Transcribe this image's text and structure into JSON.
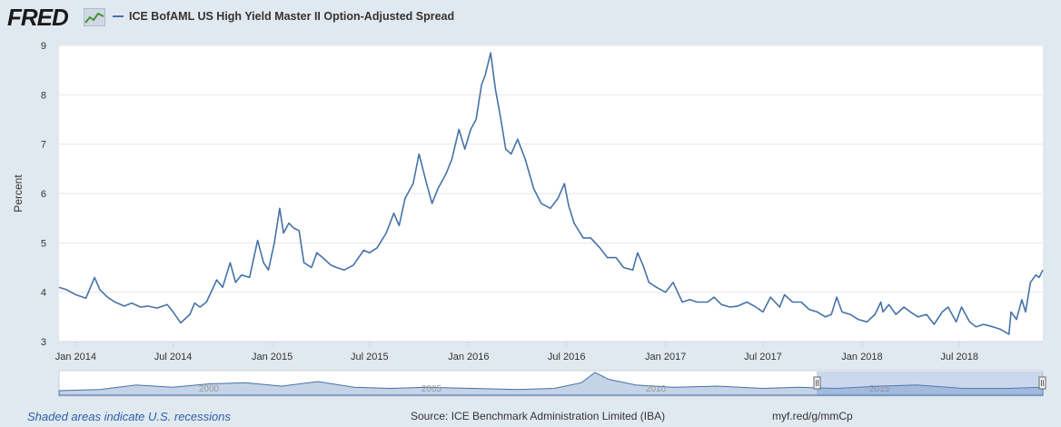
{
  "header": {
    "logo": "FRED",
    "series_name": "ICE BofAML US High Yield Master II Option-Adjusted Spread",
    "series_color": "#4572a7"
  },
  "footer": {
    "recession_note": "Shaded areas indicate U.S. recessions",
    "source": "Source: ICE Benchmark Administration Limited (IBA)",
    "short_url": "myf.red/g/mmCp"
  },
  "navigator": {
    "year_labels": [
      "2000",
      "2005",
      "2010",
      "2015"
    ]
  },
  "chart_data": {
    "type": "line",
    "title": "",
    "xlabel": "",
    "ylabel": "Percent",
    "xlim": [
      "2013-12-01",
      "2018-12-03"
    ],
    "ylim": [
      3,
      9
    ],
    "yticks": [
      3,
      4,
      5,
      6,
      7,
      8,
      9
    ],
    "xticks": [
      "Jan 2014",
      "Jul 2014",
      "Jan 2015",
      "Jul 2015",
      "Jan 2016",
      "Jul 2016",
      "Jan 2017",
      "Jul 2017",
      "Jan 2018",
      "Jul 2018"
    ],
    "grid": "horizontal",
    "legend": "top-left",
    "series": [
      {
        "name": "ICE BofAML US High Yield Master II Option-Adjusted Spread",
        "color": "#4572a7",
        "x": [
          "2013-12-01",
          "2013-12-15",
          "2014-01-01",
          "2014-01-20",
          "2014-02-05",
          "2014-02-15",
          "2014-03-01",
          "2014-03-15",
          "2014-04-01",
          "2014-04-15",
          "2014-05-01",
          "2014-05-15",
          "2014-06-01",
          "2014-06-20",
          "2014-07-01",
          "2014-07-15",
          "2014-08-01",
          "2014-08-10",
          "2014-08-20",
          "2014-09-01",
          "2014-09-20",
          "2014-10-01",
          "2014-10-15",
          "2014-10-25",
          "2014-11-05",
          "2014-11-20",
          "2014-12-05",
          "2014-12-16",
          "2014-12-25",
          "2015-01-05",
          "2015-01-15",
          "2015-01-22",
          "2015-02-01",
          "2015-02-10",
          "2015-02-20",
          "2015-03-01",
          "2015-03-15",
          "2015-03-25",
          "2015-04-05",
          "2015-04-20",
          "2015-05-01",
          "2015-05-15",
          "2015-06-01",
          "2015-06-20",
          "2015-07-01",
          "2015-07-15",
          "2015-08-01",
          "2015-08-15",
          "2015-08-25",
          "2015-09-05",
          "2015-09-20",
          "2015-10-01",
          "2015-10-15",
          "2015-10-25",
          "2015-11-05",
          "2015-11-20",
          "2015-12-01",
          "2015-12-14",
          "2015-12-25",
          "2016-01-05",
          "2016-01-15",
          "2016-01-25",
          "2016-02-01",
          "2016-02-11",
          "2016-02-20",
          "2016-03-01",
          "2016-03-10",
          "2016-03-20",
          "2016-04-01",
          "2016-04-15",
          "2016-05-01",
          "2016-05-15",
          "2016-06-01",
          "2016-06-15",
          "2016-06-27",
          "2016-07-05",
          "2016-07-15",
          "2016-08-01",
          "2016-08-15",
          "2016-09-01",
          "2016-09-15",
          "2016-10-01",
          "2016-10-15",
          "2016-11-01",
          "2016-11-10",
          "2016-11-20",
          "2016-12-01",
          "2016-12-15",
          "2017-01-01",
          "2017-01-15",
          "2017-02-01",
          "2017-02-15",
          "2017-03-01",
          "2017-03-20",
          "2017-04-01",
          "2017-04-15",
          "2017-05-01",
          "2017-05-15",
          "2017-06-01",
          "2017-06-15",
          "2017-07-01",
          "2017-07-15",
          "2017-08-01",
          "2017-08-10",
          "2017-08-25",
          "2017-09-10",
          "2017-09-25",
          "2017-10-10",
          "2017-10-25",
          "2017-11-05",
          "2017-11-15",
          "2017-11-25",
          "2017-12-10",
          "2017-12-25",
          "2018-01-10",
          "2018-01-25",
          "2018-02-05",
          "2018-02-09",
          "2018-02-20",
          "2018-03-05",
          "2018-03-20",
          "2018-04-01",
          "2018-04-15",
          "2018-05-01",
          "2018-05-15",
          "2018-05-30",
          "2018-06-10",
          "2018-06-25",
          "2018-07-05",
          "2018-07-20",
          "2018-08-01",
          "2018-08-15",
          "2018-09-01",
          "2018-09-15",
          "2018-10-01",
          "2018-10-05",
          "2018-10-15",
          "2018-10-25",
          "2018-11-01",
          "2018-11-10",
          "2018-11-20",
          "2018-11-26",
          "2018-12-03"
        ],
        "y": [
          4.1,
          4.05,
          3.95,
          3.88,
          4.3,
          4.05,
          3.9,
          3.8,
          3.72,
          3.78,
          3.7,
          3.72,
          3.68,
          3.75,
          3.6,
          3.38,
          3.55,
          3.78,
          3.7,
          3.8,
          4.25,
          4.1,
          4.6,
          4.2,
          4.35,
          4.3,
          5.05,
          4.6,
          4.45,
          5.0,
          5.7,
          5.2,
          5.4,
          5.3,
          5.25,
          4.6,
          4.5,
          4.8,
          4.7,
          4.55,
          4.5,
          4.45,
          4.55,
          4.85,
          4.8,
          4.9,
          5.2,
          5.6,
          5.35,
          5.9,
          6.2,
          6.8,
          6.2,
          5.8,
          6.1,
          6.4,
          6.7,
          7.3,
          6.9,
          7.3,
          7.5,
          8.2,
          8.4,
          8.85,
          8.1,
          7.5,
          6.9,
          6.8,
          7.1,
          6.7,
          6.1,
          5.8,
          5.7,
          5.9,
          6.2,
          5.75,
          5.4,
          5.1,
          5.1,
          4.9,
          4.7,
          4.7,
          4.5,
          4.45,
          4.8,
          4.55,
          4.2,
          4.1,
          4.0,
          4.2,
          3.8,
          3.85,
          3.8,
          3.8,
          3.9,
          3.75,
          3.7,
          3.72,
          3.8,
          3.72,
          3.6,
          3.9,
          3.7,
          3.95,
          3.8,
          3.8,
          3.65,
          3.6,
          3.5,
          3.55,
          3.9,
          3.6,
          3.55,
          3.45,
          3.4,
          3.55,
          3.8,
          3.6,
          3.75,
          3.55,
          3.7,
          3.6,
          3.5,
          3.55,
          3.35,
          3.6,
          3.7,
          3.4,
          3.7,
          3.4,
          3.3,
          3.35,
          3.3,
          3.25,
          3.15,
          3.6,
          3.45,
          3.85,
          3.6,
          4.2,
          4.35,
          4.3,
          4.45
        ]
      }
    ]
  }
}
